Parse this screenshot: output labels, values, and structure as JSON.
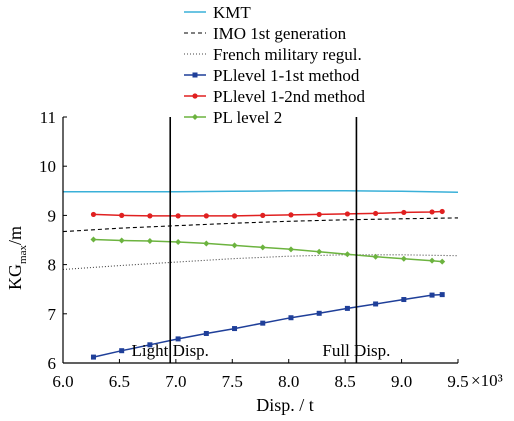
{
  "chart_data": {
    "type": "line",
    "xlabel": "Disp. / t",
    "ylabel_main": "KG",
    "ylabel_sub": "max",
    "ylabel_unit": "/m",
    "x_multiplier": "×10³",
    "xlim": [
      6.0,
      9.5
    ],
    "ylim": [
      6,
      11
    ],
    "xticks": [
      6.0,
      6.5,
      7.0,
      7.5,
      8.0,
      8.5,
      9.0,
      9.5
    ],
    "xtick_labels": [
      "6.0",
      "6.5",
      "7.0",
      "7.5",
      "8.0",
      "8.5",
      "9.0",
      "9.5"
    ],
    "yticks": [
      6,
      7,
      8,
      9,
      10,
      11
    ],
    "ytick_labels": [
      "6",
      "7",
      "8",
      "9",
      "10",
      "11"
    ],
    "grid": false,
    "legend_position": "top",
    "vlines": [
      {
        "x": 6.95,
        "label": "Light Disp."
      },
      {
        "x": 8.6,
        "label": "Full Disp."
      }
    ],
    "series": [
      {
        "name": "KMT",
        "color": "#3ab0d8",
        "style": "solid",
        "marker": "none",
        "x": [
          6.0,
          6.5,
          7.0,
          7.5,
          8.0,
          8.5,
          9.0,
          9.5
        ],
        "y": [
          9.48,
          9.48,
          9.48,
          9.49,
          9.5,
          9.5,
          9.49,
          9.47
        ]
      },
      {
        "name": "IMO 1st generation",
        "color": "#000000",
        "style": "dashed",
        "marker": "none",
        "x": [
          6.0,
          6.5,
          7.0,
          7.5,
          8.0,
          8.5,
          9.0,
          9.5
        ],
        "y": [
          8.67,
          8.74,
          8.79,
          8.84,
          8.88,
          8.91,
          8.93,
          8.95
        ]
      },
      {
        "name": "French military regul.",
        "color": "#444444",
        "style": "dotted",
        "marker": "none",
        "x": [
          6.0,
          6.5,
          7.0,
          7.5,
          8.0,
          8.5,
          9.0,
          9.5
        ],
        "y": [
          7.9,
          7.98,
          8.05,
          8.12,
          8.17,
          8.2,
          8.2,
          8.18
        ]
      },
      {
        "name": "PLlevel 1-1st method",
        "color": "#1f3f99",
        "style": "solid",
        "marker": "square",
        "x": [
          6.27,
          6.52,
          6.77,
          7.02,
          7.27,
          7.52,
          7.77,
          8.02,
          8.27,
          8.52,
          8.77,
          9.02,
          9.27,
          9.36
        ],
        "y": [
          6.12,
          6.25,
          6.37,
          6.49,
          6.6,
          6.7,
          6.81,
          6.92,
          7.01,
          7.11,
          7.2,
          7.29,
          7.38,
          7.39
        ]
      },
      {
        "name": "PLlevel 1-2nd method",
        "color": "#e02020",
        "style": "solid",
        "marker": "circle",
        "x": [
          6.27,
          6.52,
          6.77,
          7.02,
          7.27,
          7.52,
          7.77,
          8.02,
          8.27,
          8.52,
          8.77,
          9.02,
          9.27,
          9.36
        ],
        "y": [
          9.02,
          9.0,
          8.99,
          8.99,
          8.99,
          8.99,
          9.0,
          9.01,
          9.02,
          9.03,
          9.04,
          9.06,
          9.07,
          9.08
        ]
      },
      {
        "name": "PL level 2",
        "color": "#6cb33f",
        "style": "solid",
        "marker": "diamond",
        "x": [
          6.27,
          6.52,
          6.77,
          7.02,
          7.27,
          7.52,
          7.77,
          8.02,
          8.27,
          8.52,
          8.77,
          9.02,
          9.27,
          9.36
        ],
        "y": [
          8.51,
          8.49,
          8.48,
          8.46,
          8.43,
          8.39,
          8.35,
          8.31,
          8.26,
          8.21,
          8.16,
          8.12,
          8.08,
          8.06
        ]
      }
    ]
  }
}
